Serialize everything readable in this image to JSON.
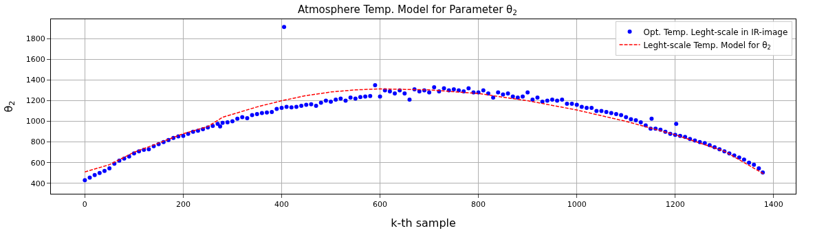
{
  "chart_data": {
    "type": "scatter",
    "title": "Atmosphere Temp. Model for Parameter θ$_{2}$",
    "xlabel": "k-th sample",
    "ylabel": "θ$_{2}$",
    "xlim": [
      -69,
      1445
    ],
    "ylim": [
      298,
      1990
    ],
    "xticks": [
      0,
      200,
      400,
      600,
      800,
      1000,
      1200,
      1400
    ],
    "yticks": [
      400,
      600,
      800,
      1000,
      1200,
      1400,
      1600,
      1800
    ],
    "grid": true,
    "legend": "top right",
    "series": [
      {
        "name": "Opt. Temp. Leght-scale in IR-image",
        "marker": "circle",
        "color": "#0000ff",
        "x": [
          0,
          10,
          20,
          30,
          40,
          50,
          60,
          70,
          80,
          90,
          100,
          110,
          120,
          130,
          140,
          150,
          160,
          170,
          180,
          190,
          200,
          210,
          220,
          230,
          240,
          250,
          260,
          270,
          275,
          280,
          290,
          300,
          310,
          320,
          330,
          340,
          350,
          360,
          370,
          380,
          390,
          400,
          405,
          410,
          420,
          430,
          440,
          450,
          460,
          470,
          480,
          490,
          500,
          510,
          520,
          530,
          540,
          550,
          560,
          570,
          580,
          590,
          600,
          610,
          620,
          630,
          640,
          650,
          660,
          670,
          680,
          690,
          700,
          710,
          720,
          730,
          740,
          750,
          760,
          770,
          780,
          790,
          800,
          810,
          820,
          830,
          840,
          850,
          860,
          870,
          880,
          890,
          900,
          910,
          920,
          930,
          940,
          950,
          960,
          970,
          980,
          990,
          1000,
          1010,
          1020,
          1030,
          1040,
          1050,
          1060,
          1070,
          1080,
          1090,
          1100,
          1110,
          1120,
          1130,
          1140,
          1150,
          1152,
          1160,
          1170,
          1180,
          1190,
          1200,
          1202,
          1210,
          1220,
          1230,
          1240,
          1250,
          1260,
          1270,
          1280,
          1290,
          1300,
          1310,
          1320,
          1330,
          1340,
          1350,
          1360,
          1370,
          1378
        ],
        "values": [
          430,
          455,
          480,
          500,
          520,
          545,
          590,
          620,
          640,
          660,
          690,
          710,
          725,
          730,
          760,
          780,
          800,
          820,
          840,
          855,
          860,
          880,
          900,
          910,
          925,
          940,
          955,
          975,
          950,
          985,
          990,
          1000,
          1025,
          1040,
          1030,
          1060,
          1070,
          1080,
          1085,
          1090,
          1120,
          1130,
          1915,
          1140,
          1135,
          1140,
          1150,
          1160,
          1165,
          1150,
          1180,
          1200,
          1190,
          1210,
          1220,
          1200,
          1230,
          1220,
          1235,
          1240,
          1245,
          1350,
          1240,
          1300,
          1290,
          1270,
          1300,
          1270,
          1210,
          1310,
          1290,
          1300,
          1280,
          1330,
          1290,
          1320,
          1300,
          1310,
          1300,
          1290,
          1320,
          1280,
          1280,
          1300,
          1270,
          1230,
          1280,
          1260,
          1270,
          1240,
          1230,
          1240,
          1280,
          1210,
          1230,
          1190,
          1200,
          1210,
          1200,
          1210,
          1170,
          1170,
          1160,
          1140,
          1130,
          1130,
          1100,
          1100,
          1090,
          1080,
          1070,
          1060,
          1040,
          1020,
          1010,
          990,
          960,
          930,
          1025,
          930,
          920,
          900,
          880,
          870,
          975,
          860,
          850,
          830,
          815,
          800,
          790,
          770,
          750,
          730,
          710,
          690,
          670,
          650,
          630,
          600,
          580,
          545,
          505
        ]
      },
      {
        "name": "Leght-scale Temp. Model for θ$_{2}$",
        "type": "line",
        "marker": "none",
        "line_style": "dashed",
        "color": "#ff0000",
        "x": [
          0,
          50,
          100,
          150,
          200,
          250,
          280,
          350,
          400,
          450,
          500,
          550,
          600,
          700,
          800,
          900,
          1000,
          1100,
          1200,
          1300,
          1380
        ],
        "values": [
          510,
          580,
          700,
          790,
          880,
          950,
          1040,
          1140,
          1200,
          1250,
          1285,
          1305,
          1315,
          1305,
          1270,
          1200,
          1110,
          1000,
          870,
          710,
          490
        ]
      }
    ]
  }
}
